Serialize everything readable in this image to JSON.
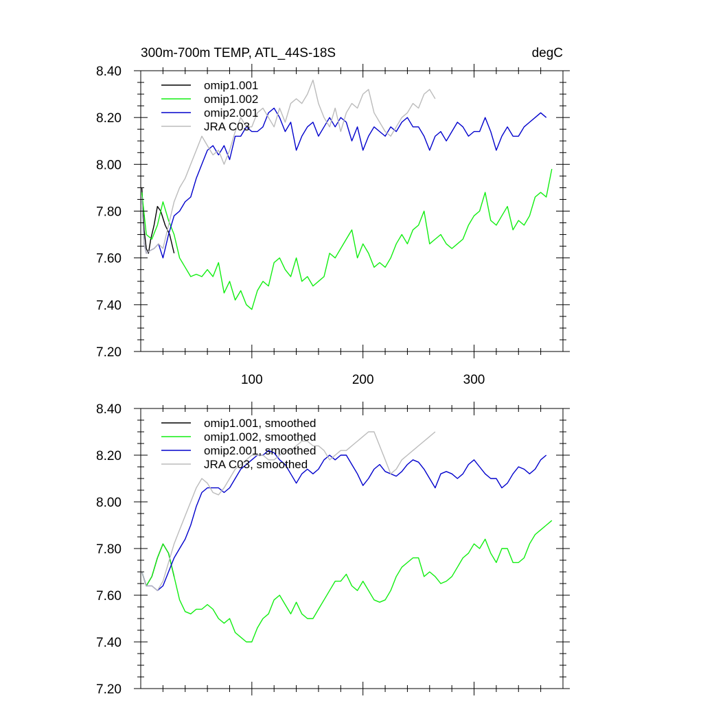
{
  "chart_data": [
    {
      "type": "line",
      "title": "300m-700m TEMP, ATL_44S-18S",
      "units": "degC",
      "xlabel": "",
      "ylabel": "",
      "xlim": [
        0,
        380
      ],
      "ylim": [
        7.2,
        8.4
      ],
      "x_ticks": [
        100,
        200,
        300
      ],
      "x_tick_labels": [
        "100",
        "200",
        "300"
      ],
      "y_ticks": [
        7.2,
        7.4,
        7.6,
        7.8,
        8.0,
        8.2,
        8.4
      ],
      "y_tick_labels": [
        "7.20",
        "7.40",
        "7.60",
        "7.80",
        "8.00",
        "8.20",
        "8.40"
      ],
      "legend_position": "top-left",
      "grid": false,
      "series": [
        {
          "name": "omip1.001",
          "color": "#000000",
          "x": [
            1,
            3,
            5,
            7,
            9,
            12,
            15,
            18,
            22,
            26,
            30
          ],
          "values": [
            7.9,
            7.72,
            7.64,
            7.62,
            7.68,
            7.74,
            7.82,
            7.8,
            7.74,
            7.7,
            7.62
          ]
        },
        {
          "name": "omip1.002",
          "color": "#11ee11",
          "x": [
            1,
            5,
            10,
            15,
            20,
            25,
            30,
            35,
            40,
            45,
            50,
            55,
            60,
            65,
            70,
            75,
            80,
            85,
            90,
            95,
            100,
            105,
            110,
            115,
            120,
            125,
            130,
            135,
            140,
            145,
            150,
            155,
            160,
            165,
            170,
            175,
            180,
            185,
            190,
            195,
            200,
            205,
            210,
            215,
            220,
            225,
            230,
            235,
            240,
            245,
            250,
            255,
            260,
            265,
            270,
            275,
            280,
            285,
            290,
            295,
            300,
            305,
            310,
            315,
            320,
            325,
            330,
            335,
            340,
            345,
            350,
            355,
            360,
            365,
            370
          ],
          "values": [
            7.88,
            7.7,
            7.68,
            7.74,
            7.84,
            7.76,
            7.7,
            7.6,
            7.56,
            7.52,
            7.53,
            7.52,
            7.55,
            7.52,
            7.58,
            7.45,
            7.5,
            7.42,
            7.46,
            7.4,
            7.38,
            7.46,
            7.5,
            7.48,
            7.58,
            7.6,
            7.55,
            7.52,
            7.6,
            7.5,
            7.52,
            7.48,
            7.5,
            7.52,
            7.62,
            7.6,
            7.64,
            7.68,
            7.72,
            7.6,
            7.66,
            7.62,
            7.56,
            7.58,
            7.56,
            7.6,
            7.66,
            7.7,
            7.66,
            7.72,
            7.74,
            7.8,
            7.66,
            7.68,
            7.7,
            7.66,
            7.64,
            7.66,
            7.68,
            7.74,
            7.78,
            7.8,
            7.88,
            7.76,
            7.74,
            7.78,
            7.82,
            7.72,
            7.76,
            7.74,
            7.78,
            7.86,
            7.88,
            7.86,
            7.98
          ]
        },
        {
          "name": "omip2.001",
          "color": "#0000cc",
          "x": [
            1,
            3,
            5,
            8,
            12,
            16,
            20,
            25,
            30,
            35,
            40,
            45,
            50,
            55,
            60,
            65,
            70,
            75,
            80,
            85,
            90,
            95,
            100,
            105,
            110,
            115,
            120,
            125,
            130,
            135,
            140,
            145,
            150,
            155,
            160,
            165,
            170,
            175,
            180,
            185,
            190,
            195,
            200,
            205,
            210,
            215,
            220,
            225,
            230,
            235,
            240,
            245,
            250,
            255,
            260,
            265,
            270,
            275,
            280,
            285,
            290,
            295,
            300,
            305,
            310,
            315,
            320,
            325,
            330,
            335,
            340,
            345,
            350,
            355,
            360,
            365
          ],
          "values": [
            7.86,
            7.66,
            7.62,
            7.63,
            7.64,
            7.66,
            7.6,
            7.7,
            7.78,
            7.8,
            7.84,
            7.86,
            7.94,
            8.0,
            8.06,
            8.08,
            8.04,
            8.08,
            8.02,
            8.12,
            8.12,
            8.16,
            8.14,
            8.14,
            8.16,
            8.22,
            8.24,
            8.2,
            8.14,
            8.18,
            8.06,
            8.12,
            8.16,
            8.18,
            8.12,
            8.16,
            8.2,
            8.16,
            8.2,
            8.18,
            8.1,
            8.16,
            8.06,
            8.12,
            8.16,
            8.14,
            8.12,
            8.16,
            8.14,
            8.18,
            8.2,
            8.16,
            8.16,
            8.12,
            8.06,
            8.12,
            8.14,
            8.1,
            8.14,
            8.18,
            8.16,
            8.12,
            8.14,
            8.14,
            8.2,
            8.14,
            8.06,
            8.12,
            8.16,
            8.12,
            8.12,
            8.16,
            8.18,
            8.2,
            8.22,
            8.2
          ]
        },
        {
          "name": "JRA C03",
          "color": "#bbbbbb",
          "x": [
            1,
            3,
            5,
            8,
            12,
            16,
            20,
            25,
            30,
            35,
            40,
            45,
            50,
            55,
            60,
            65,
            70,
            75,
            80,
            85,
            90,
            95,
            100,
            105,
            110,
            115,
            120,
            125,
            130,
            135,
            140,
            145,
            150,
            155,
            160,
            165,
            170,
            175,
            180,
            185,
            190,
            195,
            200,
            205,
            210,
            215,
            220,
            225,
            230,
            235,
            240,
            245,
            250,
            255,
            260,
            265
          ],
          "values": [
            7.86,
            7.66,
            7.62,
            7.63,
            7.64,
            7.66,
            7.64,
            7.74,
            7.84,
            7.9,
            7.94,
            8.0,
            8.06,
            8.12,
            8.08,
            8.04,
            8.06,
            8.0,
            8.06,
            8.14,
            8.2,
            8.16,
            8.16,
            8.22,
            8.24,
            8.2,
            8.16,
            8.24,
            8.18,
            8.26,
            8.28,
            8.26,
            8.3,
            8.36,
            8.26,
            8.2,
            8.16,
            8.24,
            8.14,
            8.22,
            8.26,
            8.24,
            8.3,
            8.32,
            8.22,
            8.18,
            8.14,
            8.12,
            8.16,
            8.2,
            8.22,
            8.26,
            8.24,
            8.3,
            8.32,
            8.28
          ]
        }
      ]
    },
    {
      "type": "line",
      "title": "",
      "xlabel": "",
      "ylabel": "",
      "xlim": [
        0,
        380
      ],
      "ylim": [
        7.2,
        8.4
      ],
      "x_ticks": [
        100,
        200,
        300
      ],
      "x_tick_labels": [],
      "y_ticks": [
        7.2,
        7.4,
        7.6,
        7.8,
        8.0,
        8.2,
        8.4
      ],
      "y_tick_labels": [
        "7.20",
        "7.40",
        "7.60",
        "7.80",
        "8.00",
        "8.20",
        "8.40"
      ],
      "legend_position": "top-left",
      "grid": false,
      "series": [
        {
          "name": "omip1.001, smoothed",
          "color": "#000000",
          "x": [
            1,
            5,
            10,
            15,
            20,
            25,
            30
          ],
          "values": [
            7.7,
            7.64,
            7.68,
            7.76,
            7.82,
            7.78,
            7.68
          ]
        },
        {
          "name": "omip1.002, smoothed",
          "color": "#11ee11",
          "x": [
            1,
            5,
            10,
            15,
            20,
            25,
            30,
            35,
            40,
            45,
            50,
            55,
            60,
            65,
            70,
            75,
            80,
            85,
            90,
            95,
            100,
            105,
            110,
            115,
            120,
            125,
            130,
            135,
            140,
            145,
            150,
            155,
            160,
            165,
            170,
            175,
            180,
            185,
            190,
            195,
            200,
            205,
            210,
            215,
            220,
            225,
            230,
            235,
            240,
            245,
            250,
            255,
            260,
            265,
            270,
            275,
            280,
            285,
            290,
            295,
            300,
            305,
            310,
            315,
            320,
            325,
            330,
            335,
            340,
            345,
            350,
            355,
            360,
            365,
            370
          ],
          "values": [
            7.7,
            7.64,
            7.68,
            7.76,
            7.82,
            7.78,
            7.68,
            7.58,
            7.53,
            7.52,
            7.54,
            7.54,
            7.56,
            7.54,
            7.5,
            7.48,
            7.5,
            7.44,
            7.42,
            7.4,
            7.4,
            7.46,
            7.5,
            7.52,
            7.58,
            7.6,
            7.56,
            7.52,
            7.57,
            7.52,
            7.5,
            7.5,
            7.54,
            7.58,
            7.62,
            7.66,
            7.66,
            7.69,
            7.64,
            7.62,
            7.66,
            7.62,
            7.58,
            7.57,
            7.58,
            7.62,
            7.68,
            7.72,
            7.74,
            7.76,
            7.76,
            7.68,
            7.7,
            7.68,
            7.65,
            7.66,
            7.68,
            7.72,
            7.76,
            7.78,
            7.82,
            7.8,
            7.84,
            7.78,
            7.74,
            7.8,
            7.8,
            7.74,
            7.74,
            7.76,
            7.82,
            7.86,
            7.88,
            7.9,
            7.92
          ]
        },
        {
          "name": "omip2.001, smoothed",
          "color": "#0000cc",
          "x": [
            1,
            5,
            10,
            15,
            20,
            25,
            30,
            35,
            40,
            45,
            50,
            55,
            60,
            65,
            70,
            75,
            80,
            85,
            90,
            95,
            100,
            105,
            110,
            115,
            120,
            125,
            130,
            135,
            140,
            145,
            150,
            155,
            160,
            165,
            170,
            175,
            180,
            185,
            190,
            195,
            200,
            205,
            210,
            215,
            220,
            225,
            230,
            235,
            240,
            245,
            250,
            255,
            260,
            265,
            270,
            275,
            280,
            285,
            290,
            295,
            300,
            305,
            310,
            315,
            320,
            325,
            330,
            335,
            340,
            345,
            350,
            355,
            360,
            365
          ],
          "values": [
            7.7,
            7.64,
            7.64,
            7.62,
            7.64,
            7.7,
            7.76,
            7.8,
            7.84,
            7.9,
            7.98,
            8.04,
            8.06,
            8.06,
            8.06,
            8.04,
            8.06,
            8.1,
            8.14,
            8.16,
            8.18,
            8.2,
            8.2,
            8.22,
            8.21,
            8.18,
            8.16,
            8.12,
            8.08,
            8.12,
            8.14,
            8.12,
            8.14,
            8.18,
            8.2,
            8.18,
            8.2,
            8.2,
            8.16,
            8.12,
            8.07,
            8.1,
            8.14,
            8.16,
            8.13,
            8.12,
            8.11,
            8.13,
            8.16,
            8.18,
            8.17,
            8.14,
            8.1,
            8.06,
            8.12,
            8.13,
            8.12,
            8.1,
            8.12,
            8.16,
            8.18,
            8.15,
            8.12,
            8.1,
            8.1,
            8.06,
            8.08,
            8.12,
            8.15,
            8.14,
            8.12,
            8.14,
            8.18,
            8.2
          ]
        },
        {
          "name": "JRA C03, smoothed",
          "color": "#bbbbbb",
          "x": [
            1,
            5,
            10,
            15,
            20,
            25,
            30,
            35,
            40,
            45,
            50,
            55,
            60,
            65,
            70,
            75,
            80,
            85,
            90,
            95,
            100,
            105,
            110,
            115,
            120,
            125,
            130,
            135,
            140,
            145,
            150,
            155,
            160,
            165,
            170,
            175,
            180,
            185,
            190,
            195,
            200,
            205,
            210,
            215,
            220,
            225,
            230,
            235,
            240,
            245,
            250,
            255,
            260,
            265
          ],
          "values": [
            7.7,
            7.64,
            7.64,
            7.62,
            7.66,
            7.74,
            7.82,
            7.88,
            7.94,
            8.0,
            8.06,
            8.1,
            8.08,
            8.04,
            8.03,
            8.06,
            8.1,
            8.14,
            8.16,
            8.18,
            8.2,
            8.2,
            8.2,
            8.18,
            8.18,
            8.2,
            8.22,
            8.22,
            8.24,
            8.26,
            8.26,
            8.24,
            8.24,
            8.22,
            8.18,
            8.2,
            8.22,
            8.22,
            8.24,
            8.26,
            8.28,
            8.3,
            8.3,
            8.24,
            8.18,
            8.12,
            8.14,
            8.18,
            8.2,
            8.22,
            8.24,
            8.26,
            8.28,
            8.3
          ]
        }
      ]
    }
  ]
}
